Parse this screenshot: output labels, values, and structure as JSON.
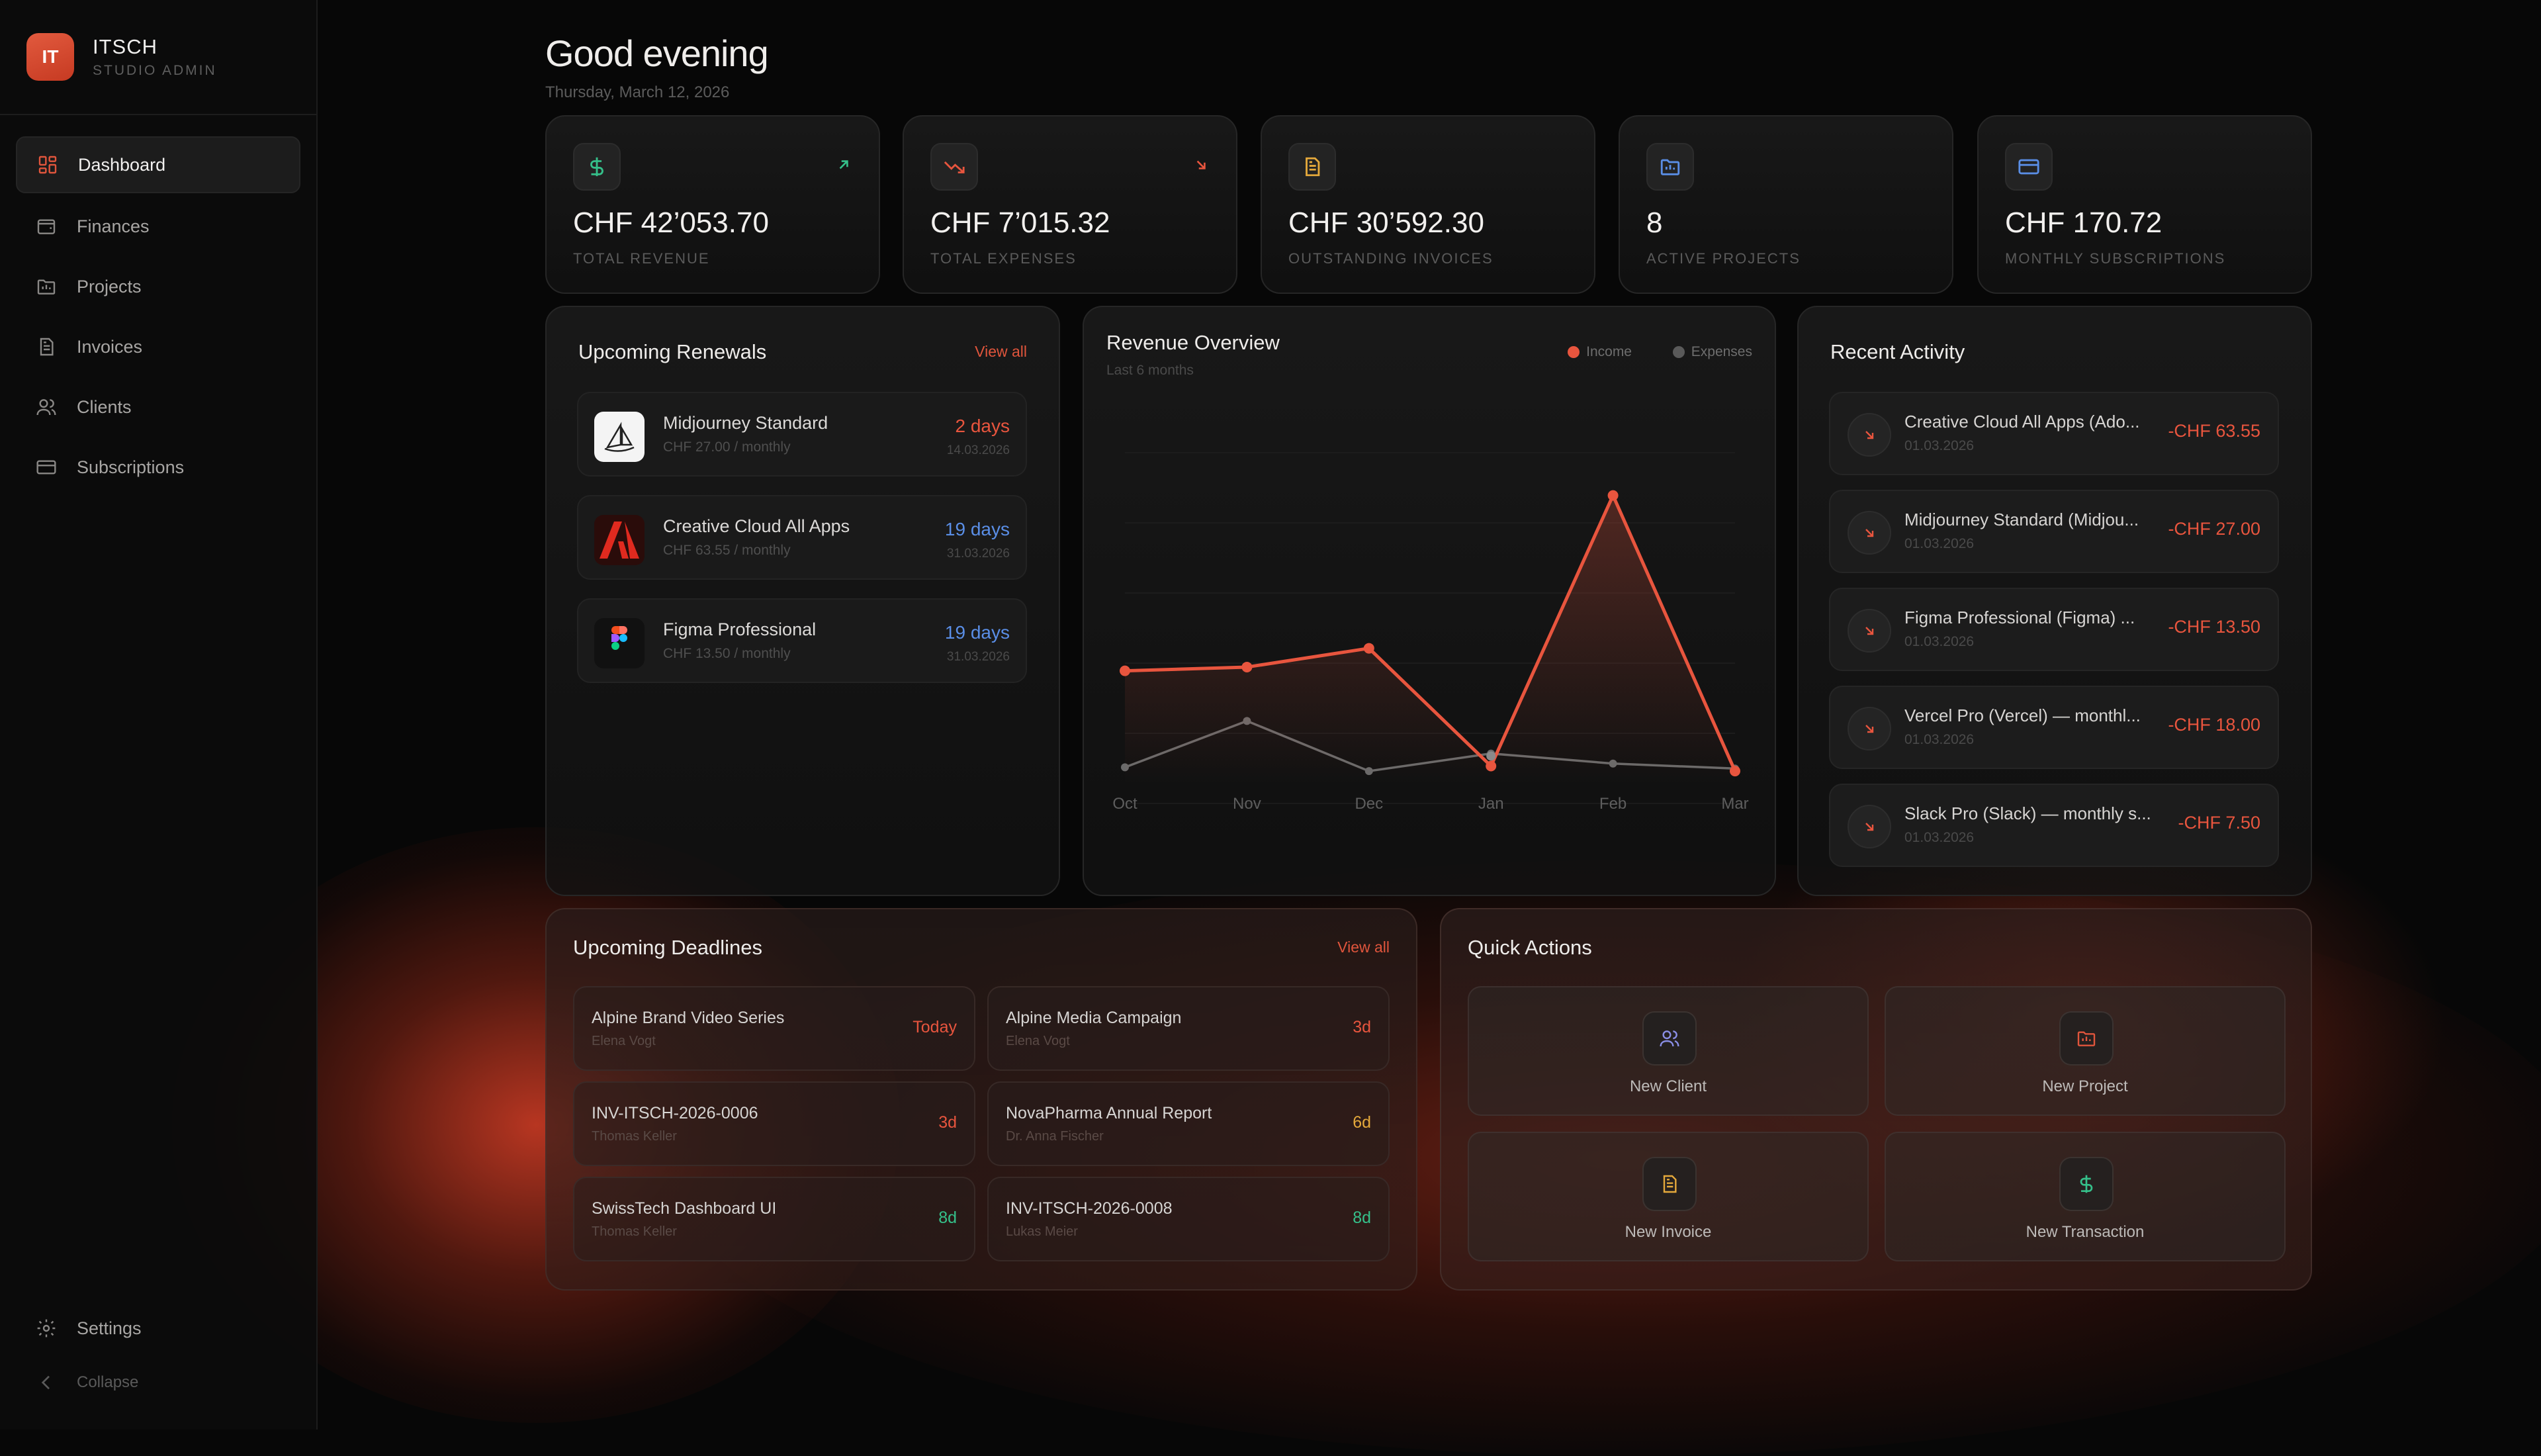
{
  "brand": {
    "initials": "IT",
    "name": "ITSCH",
    "subtitle": "STUDIO ADMIN"
  },
  "sidebar": {
    "items": [
      {
        "label": "Dashboard",
        "icon": "grid-icon",
        "active": true
      },
      {
        "label": "Finances",
        "icon": "wallet-icon"
      },
      {
        "label": "Projects",
        "icon": "folder-icon"
      },
      {
        "label": "Invoices",
        "icon": "document-icon"
      },
      {
        "label": "Clients",
        "icon": "users-icon"
      },
      {
        "label": "Subscriptions",
        "icon": "credit-card-icon"
      }
    ],
    "settings_label": "Settings",
    "collapse_label": "Collapse"
  },
  "header": {
    "greeting": "Good evening",
    "date": "Thursday, March 12, 2026"
  },
  "stats": [
    {
      "value": "CHF 42’053.70",
      "label": "TOTAL REVENUE",
      "icon": "dollar-icon",
      "color": "#35c08a",
      "trend": "up"
    },
    {
      "value": "CHF 7’015.32",
      "label": "TOTAL EXPENSES",
      "icon": "trending-down-icon",
      "color": "#e8553e",
      "trend": "down"
    },
    {
      "value": "CHF 30’592.30",
      "label": "OUTSTANDING INVOICES",
      "icon": "document-icon",
      "color": "#e5a93b"
    },
    {
      "value": "8",
      "label": "ACTIVE PROJECTS",
      "icon": "folder-icon",
      "color": "#5a8ee6"
    },
    {
      "value": "CHF 170.72",
      "label": "MONTHLY SUBSCRIPTIONS",
      "icon": "credit-card-icon",
      "color": "#5a8ee6"
    }
  ],
  "renewals": {
    "title": "Upcoming Renewals",
    "view_all": "View all",
    "items": [
      {
        "name": "Midjourney Standard",
        "price": "CHF 27.00 / monthly",
        "days": "2 days",
        "date": "14.03.2026",
        "days_color": "#e8553e",
        "icon": "midjourney-icon"
      },
      {
        "name": "Creative Cloud All Apps",
        "price": "CHF 63.55 / monthly",
        "days": "19 days",
        "date": "31.03.2026",
        "days_color": "#5a8ee6",
        "icon": "adobe-icon"
      },
      {
        "name": "Figma Professional",
        "price": "CHF 13.50 / monthly",
        "days": "19 days",
        "date": "31.03.2026",
        "days_color": "#5a8ee6",
        "icon": "figma-icon"
      }
    ]
  },
  "revenue": {
    "title": "Revenue Overview",
    "subtitle": "Last 6 months",
    "legend_income": "Income",
    "legend_expenses": "Expenses"
  },
  "chart_data": {
    "type": "line",
    "title": "Revenue Overview",
    "subtitle": "Last 6 months",
    "categories": [
      "Oct",
      "Nov",
      "Dec",
      "Jan",
      "Feb",
      "Mar"
    ],
    "series": [
      {
        "name": "Income",
        "color": "#e8553e",
        "values": [
          4000,
          4150,
          4900,
          200,
          11000,
          0
        ],
        "extra_point": {
          "x": "Jan",
          "y": 600
        }
      },
      {
        "name": "Expenses",
        "color": "#6a6a6a",
        "values": [
          150,
          2000,
          0,
          700,
          300,
          100
        ]
      }
    ],
    "ylim": [
      -500,
      13500
    ],
    "grid": true,
    "legend": "top-right"
  },
  "activity": {
    "title": "Recent Activity",
    "items": [
      {
        "name": "Creative Cloud All Apps (Ado...",
        "date": "01.03.2026",
        "amount": "-CHF 63.55"
      },
      {
        "name": "Midjourney Standard (Midjou...",
        "date": "01.03.2026",
        "amount": "-CHF 27.00"
      },
      {
        "name": "Figma Professional (Figma) ...",
        "date": "01.03.2026",
        "amount": "-CHF 13.50"
      },
      {
        "name": "Vercel Pro (Vercel) — monthl...",
        "date": "01.03.2026",
        "amount": "-CHF 18.00"
      },
      {
        "name": "Slack Pro (Slack) — monthly s...",
        "date": "01.03.2026",
        "amount": "-CHF 7.50"
      }
    ]
  },
  "deadlines": {
    "title": "Upcoming Deadlines",
    "view_all": "View all",
    "items": [
      {
        "name": "Alpine Brand Video Series",
        "person": "Elena Vogt",
        "due": "Today",
        "color": "#e8553e"
      },
      {
        "name": "Alpine Media Campaign",
        "person": "Elena Vogt",
        "due": "3d",
        "color": "#e8553e"
      },
      {
        "name": "INV-ITSCH-2026-0006",
        "person": "Thomas Keller",
        "due": "3d",
        "color": "#e8553e"
      },
      {
        "name": "NovaPharma Annual Report",
        "person": "Dr. Anna Fischer",
        "due": "6d",
        "color": "#e5a93b"
      },
      {
        "name": "SwissTech Dashboard UI",
        "person": "Thomas Keller",
        "due": "8d",
        "color": "#35c08a"
      },
      {
        "name": "INV-ITSCH-2026-0008",
        "person": "Lukas Meier",
        "due": "8d",
        "color": "#35c08a"
      }
    ]
  },
  "quick_actions": {
    "title": "Quick Actions",
    "items": [
      {
        "label": "New Client",
        "icon": "users-icon",
        "color": "#8a8ee6"
      },
      {
        "label": "New Project",
        "icon": "folder-icon",
        "color": "#e0553c"
      },
      {
        "label": "New Invoice",
        "icon": "document-icon",
        "color": "#e5a93b"
      },
      {
        "label": "New Transaction",
        "icon": "dollar-icon",
        "color": "#35c08a"
      }
    ]
  }
}
